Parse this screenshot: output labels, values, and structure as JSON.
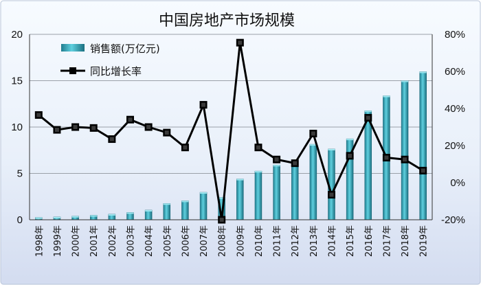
{
  "chart_data": {
    "type": "bar+line",
    "title": "中国房地产市场规模",
    "categories": [
      "1998年",
      "1999年",
      "2000年",
      "2001年",
      "2002年",
      "2003年",
      "2004年",
      "2005年",
      "2006年",
      "2007年",
      "2008年",
      "2009年",
      "2010年",
      "2011年",
      "2012年",
      "2013年",
      "2014年",
      "2015年",
      "2016年",
      "2017年",
      "2018年",
      "2019年"
    ],
    "series": [
      {
        "name": "销售额(万亿元)",
        "type": "bar",
        "axis": "left",
        "values": [
          0.25,
          0.3,
          0.39,
          0.49,
          0.6,
          0.79,
          1.04,
          1.76,
          2.05,
          2.96,
          2.41,
          4.4,
          5.25,
          5.91,
          6.44,
          8.14,
          7.63,
          8.73,
          11.76,
          13.37,
          15.0,
          15.97
        ],
        "color": "#2aa3b4"
      },
      {
        "name": "同比增长率",
        "type": "line",
        "axis": "right",
        "values": [
          36.5,
          28.5,
          30.0,
          29.5,
          23.5,
          34.0,
          30.0,
          27.0,
          19.0,
          42.0,
          -20.0,
          75.5,
          19.0,
          12.5,
          10.5,
          26.5,
          -6.5,
          14.5,
          35.0,
          13.5,
          12.5,
          6.5
        ],
        "color": "#000000"
      }
    ],
    "y_left": {
      "min": 0,
      "max": 20,
      "ticks": [
        "0",
        "5",
        "10",
        "15",
        "20"
      ]
    },
    "y_right": {
      "min": -20,
      "max": 80,
      "ticks": [
        "-20%",
        "0%",
        "20%",
        "40%",
        "60%",
        "80%"
      ]
    },
    "grid": true,
    "legend_position": "top-left"
  }
}
